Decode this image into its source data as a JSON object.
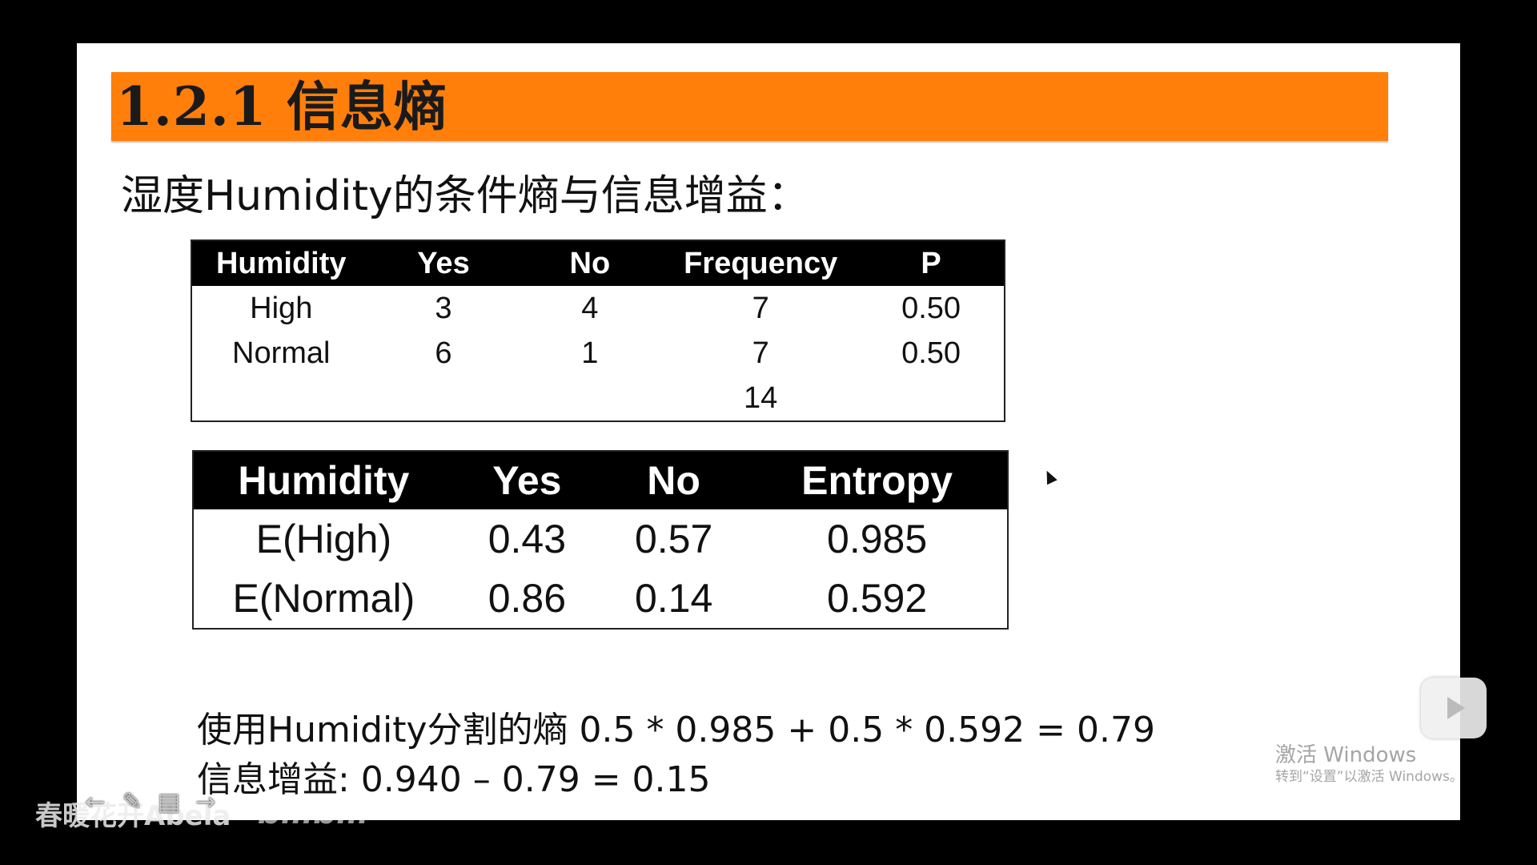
{
  "slide": {
    "title": "1.2.1 信息熵",
    "subtitle": "湿度Humidity的条件熵与信息增益：",
    "table1": {
      "headers": [
        "Humidity",
        "Yes",
        "No",
        "Frequency",
        "P"
      ],
      "rows": [
        [
          "High",
          "3",
          "4",
          "7",
          "0.50"
        ],
        [
          "Normal",
          "6",
          "1",
          "7",
          "0.50"
        ],
        [
          "",
          "",
          "",
          "14",
          ""
        ]
      ]
    },
    "table2": {
      "headers": [
        "Humidity",
        "Yes",
        "No",
        "Entropy"
      ],
      "rows": [
        [
          "E(High)",
          "0.43",
          "0.57",
          "0.985"
        ],
        [
          "E(Normal)",
          "0.86",
          "0.14",
          "0.592"
        ]
      ]
    },
    "calc_line1": "使用Humidity分割的熵 0.5 * 0.985 + 0.5 * 0.592 = 0.79",
    "calc_line2": "信息增益: 0.940 – 0.79 = 0.15"
  },
  "overlay": {
    "activate_windows": "激活 Windows",
    "activate_windows_sub": "转到“设置”以激活 Windows。",
    "uploader": "春暖花开Abela",
    "logo": "bilibili",
    "toolbar_icons": [
      "arrow-left-icon",
      "pen-icon",
      "slide-icon",
      "arrow-right-icon"
    ]
  },
  "colors": {
    "title_bar": "#ff7f0a",
    "table_header_bg": "#000000",
    "page_bg": "#000000"
  }
}
